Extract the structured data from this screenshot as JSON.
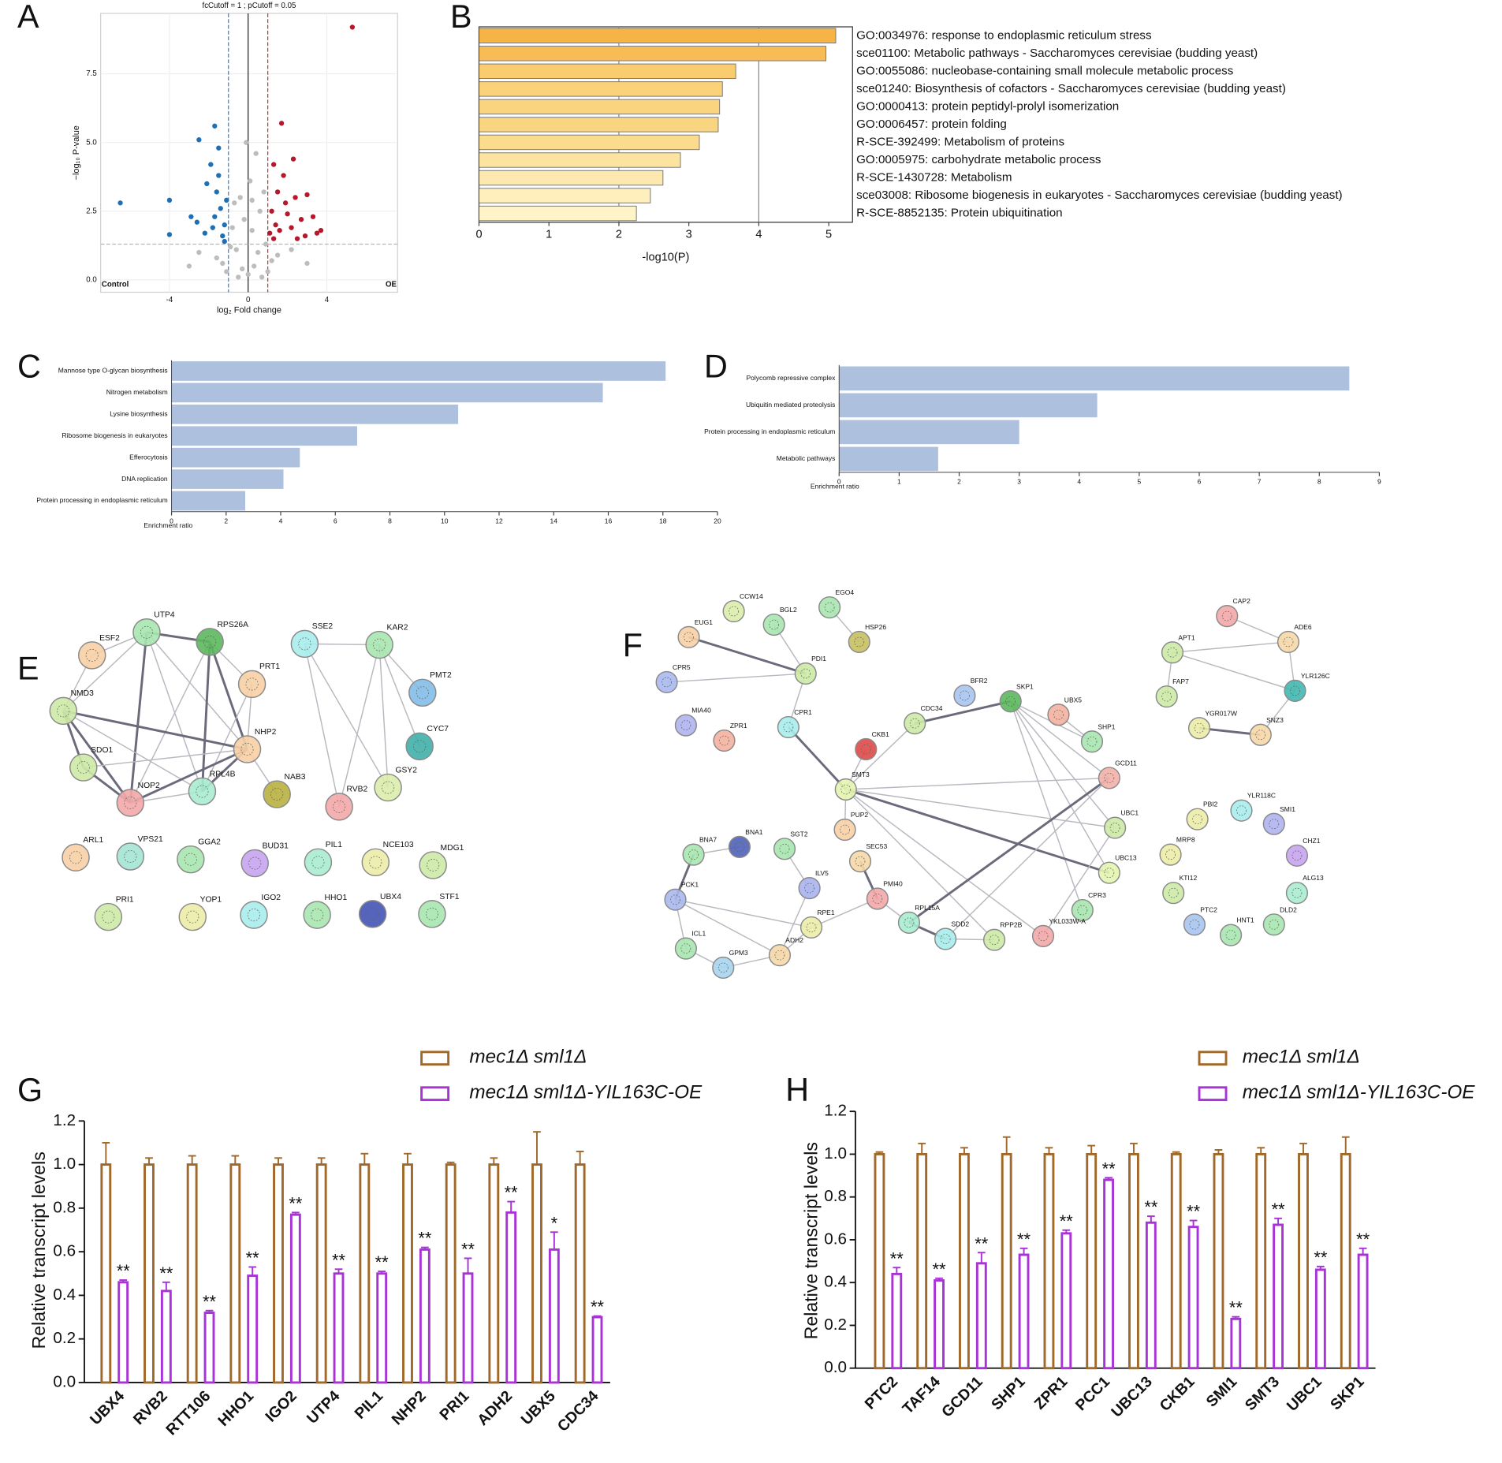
{
  "chart_data": [
    {
      "type": "scatter",
      "panel": "A",
      "title": "fcCutoff = 1 ; pCutoff = 0.05",
      "xlabel": "log₂ Fold change",
      "ylabel": "−log₁₀ P-value",
      "left_label": "Control",
      "right_label": "OE",
      "xlim": [
        -7.5,
        7.6
      ],
      "xticks": [
        -4,
        0,
        4
      ],
      "ylim": [
        -0.45,
        9.7
      ],
      "yticks": [
        {
          "value": 0,
          "label": "0.0"
        },
        2.5,
        {
          "value": 5,
          "label": "5.0"
        },
        7.5
      ],
      "grid": true,
      "cutoff_lines": {
        "x": [
          -1,
          1
        ],
        "y": 1.3
      },
      "cutoff_colors": [
        "#3a7dc6",
        "#c0392b",
        "#b0b0b0"
      ],
      "series": [
        {
          "color": "#bdbdbd",
          "x": [
            0,
            0.3,
            -0.3,
            0.5,
            -0.6,
            0.2,
            -0.2,
            0.6,
            -0.7,
            0.8,
            0.1,
            -0.4,
            0.9,
            -0.9,
            1.5,
            -1.6,
            2.2,
            -2.5,
            0.4,
            -0.1,
            3.0,
            -3.0,
            1.0,
            -1.1,
            0.7,
            -0.5,
            0.2,
            -0.8,
            1.2,
            -1.3
          ],
          "values": [
            0.2,
            0.5,
            0.4,
            1.0,
            1.1,
            1.8,
            2.2,
            2.5,
            2.8,
            3.2,
            3.6,
            3.0,
            1.3,
            1.2,
            0.9,
            0.8,
            1.1,
            1.0,
            4.6,
            5.0,
            0.6,
            0.5,
            0.3,
            0.3,
            0.1,
            0.1,
            2.9,
            1.9,
            0.7,
            0.6
          ]
        },
        {
          "color": "#1f6fb5",
          "x": [
            -6.5,
            -4,
            -4,
            -2.5,
            -1.7,
            -1.5,
            -1.9,
            -2.1,
            -1.6,
            -2.6,
            -2.9,
            -1.4,
            -1.2,
            -1.8,
            -1.3,
            -2.2,
            -1.1,
            -1.5,
            -1.2,
            -1.7
          ],
          "values": [
            2.8,
            2.9,
            1.65,
            5.1,
            5.6,
            4.8,
            4.2,
            3.5,
            3.2,
            2.1,
            2.3,
            2.6,
            2.0,
            1.9,
            1.6,
            1.7,
            2.9,
            3.8,
            1.4,
            2.3
          ]
        },
        {
          "color": "#b5172b",
          "x": [
            5.3,
            1.7,
            2.3,
            1.3,
            1.8,
            2.4,
            3.0,
            1.5,
            1.2,
            2.0,
            2.7,
            3.3,
            3.5,
            2.9,
            1.6,
            1.3,
            2.2,
            3.7,
            1.9,
            1.1,
            2.5,
            1.4
          ],
          "values": [
            9.2,
            5.7,
            4.4,
            4.2,
            3.8,
            3.0,
            3.1,
            3.2,
            2.5,
            2.4,
            2.2,
            2.3,
            1.7,
            1.6,
            1.8,
            1.5,
            1.9,
            1.8,
            2.8,
            1.7,
            1.5,
            2.0
          ]
        }
      ]
    },
    {
      "type": "bar",
      "orientation": "horizontal",
      "panel": "B",
      "xlabel": "-log10(P)",
      "categories": [
        "GO:0034976: response to endoplasmic reticulum stress",
        "sce01100: Metabolic pathways - Saccharomyces cerevisiae (budding yeast)",
        "GO:0055086: nucleobase-containing small molecule metabolic process",
        "sce01240: Biosynthesis of cofactors - Saccharomyces cerevisiae (budding yeast)",
        "GO:0000413: protein peptidyl-prolyl isomerization",
        "GO:0006457: protein folding",
        "R-SCE-392499: Metabolism of proteins",
        "GO:0005975: carbohydrate metabolic process",
        "R-SCE-1430728: Metabolism",
        "sce03008: Ribosome biogenesis in eukaryotes - Saccharomyces cerevisiae (budding yeast)",
        "R-SCE-8852135: Protein ubiquitination"
      ],
      "values": [
        5.1,
        4.96,
        3.67,
        3.48,
        3.44,
        3.42,
        3.15,
        2.88,
        2.63,
        2.45,
        2.25
      ],
      "colors": [
        "#f6b447",
        "#f7bc55",
        "#f9cc70",
        "#fad27a",
        "#fad47e",
        "#fad581",
        "#fbdc8f",
        "#fce3a0",
        "#fde9b0",
        "#feefbd",
        "#fff3c8"
      ],
      "xlim": [
        0,
        5.34
      ],
      "xticks": [
        0,
        1,
        2,
        3,
        4,
        5
      ],
      "xgrid": [
        2,
        4
      ]
    },
    {
      "type": "bar",
      "orientation": "horizontal",
      "panel": "C",
      "xlabel": "Enrichment ratio",
      "categories": [
        "Mannose type O-glycan biosynthesis",
        "Nitrogen metabolism",
        "Lysine biosynthesis",
        "Ribosome biogenesis in eukaryotes",
        "Efferocytosis",
        "DNA replication",
        "Protein processing in endoplasmic reticulum"
      ],
      "values": [
        18.1,
        15.8,
        10.5,
        6.8,
        4.7,
        4.1,
        2.7
      ],
      "color": "#adc0de",
      "xlim": [
        0,
        20
      ],
      "xticks": [
        0,
        2,
        4,
        6,
        8,
        10,
        12,
        14,
        16,
        18,
        20
      ]
    },
    {
      "type": "bar",
      "orientation": "horizontal",
      "panel": "D",
      "xlabel": "Enrichment ratio",
      "categories": [
        "Polycomb repressive complex",
        "Ubiquitin mediated proteolysis",
        "Protein processing in endoplasmic reticulum",
        "Metabolic pathways"
      ],
      "values": [
        8.5,
        4.3,
        3.0,
        1.65
      ],
      "color": "#adc0de",
      "xlim": [
        0,
        9
      ],
      "xticks": [
        0,
        1,
        2,
        3,
        4,
        5,
        6,
        7,
        8,
        9
      ]
    },
    {
      "type": "network",
      "panel": "E",
      "nodes": [
        {
          "label": "UTP4",
          "color": "#a8e6b0"
        },
        {
          "label": "RPS26A",
          "color": "#5cb85c"
        },
        {
          "label": "ESF2",
          "color": "#f7cfa6"
        },
        {
          "label": "PRT1",
          "color": "#f7cfa6"
        },
        {
          "label": "NMD3",
          "color": "#cdeaa6"
        },
        {
          "label": "NHP2",
          "color": "#f7cfa6"
        },
        {
          "label": "SDO1",
          "color": "#cdeaa6"
        },
        {
          "label": "NOP2",
          "color": "#f4a8a8"
        },
        {
          "label": "RPL4B",
          "color": "#a8ecd0"
        },
        {
          "label": "NAB3",
          "color": "#b8b040"
        },
        {
          "label": "RVB2",
          "color": "#f4a8a8"
        },
        {
          "label": "GSY2",
          "color": "#dcecaa"
        },
        {
          "label": "SSE2",
          "color": "#a8ecec"
        },
        {
          "label": "KAR2",
          "color": "#a8e6b0"
        },
        {
          "label": "PMT2",
          "color": "#84bce8"
        },
        {
          "label": "CYC7",
          "color": "#40b0a8"
        },
        {
          "label": "ARL1",
          "color": "#f7cfa6"
        },
        {
          "label": "VPS21",
          "color": "#a4e4d4"
        },
        {
          "label": "GGA2",
          "color": "#a8e6b0"
        },
        {
          "label": "BUD31",
          "color": "#c8a4f0"
        },
        {
          "label": "PIL1",
          "color": "#a8ecd0"
        },
        {
          "label": "NCE103",
          "color": "#ececa8"
        },
        {
          "label": "MDG1",
          "color": "#cdeaa6"
        },
        {
          "label": "PRI1",
          "color": "#cdeaa6"
        },
        {
          "label": "YOP1",
          "color": "#ececa8"
        },
        {
          "label": "IGO2",
          "color": "#a8ecec"
        },
        {
          "label": "HHO1",
          "color": "#a8e6b0"
        },
        {
          "label": "UBX4",
          "color": "#4454b4"
        },
        {
          "label": "STF1",
          "color": "#a8e6b0"
        }
      ]
    },
    {
      "type": "network",
      "panel": "F",
      "nodes": [
        {
          "label": "CCW14",
          "color": "#dcecaa"
        },
        {
          "label": "BGL2",
          "color": "#a8e6b0"
        },
        {
          "label": "EGO4",
          "color": "#a8e6b0"
        },
        {
          "label": "HSP26",
          "color": "#c8c060"
        },
        {
          "label": "EUG1",
          "color": "#f7cfa6"
        },
        {
          "label": "PDI1",
          "color": "#cdeaa6"
        },
        {
          "label": "CPR5",
          "color": "#a8b8f0"
        },
        {
          "label": "MIA40",
          "color": "#b0b4f0"
        },
        {
          "label": "ZPR1",
          "color": "#f4b0a0"
        },
        {
          "label": "CPR1",
          "color": "#a8ecec"
        },
        {
          "label": "BFR2",
          "color": "#a8c4f0"
        },
        {
          "label": "SKP1",
          "color": "#5cb85c"
        },
        {
          "label": "UBX5",
          "color": "#f4b0a0"
        },
        {
          "label": "SHP1",
          "color": "#a8e6b0"
        },
        {
          "label": "CDC34",
          "color": "#cdeaa6"
        },
        {
          "label": "CKB1",
          "color": "#e04848"
        },
        {
          "label": "GCD11",
          "color": "#f4b0a8"
        },
        {
          "label": "SMT3",
          "color": "#e4f4b0"
        },
        {
          "label": "UBC1",
          "color": "#cdeaa6"
        },
        {
          "label": "PUP2",
          "color": "#f7cfa6"
        },
        {
          "label": "SGT2",
          "color": "#a8e6b0"
        },
        {
          "label": "BNA7",
          "color": "#a8e6b0"
        },
        {
          "label": "BNA1",
          "color": "#5060b8"
        },
        {
          "label": "SEC53",
          "color": "#f7d8a8"
        },
        {
          "label": "UBC13",
          "color": "#e4f4b0"
        },
        {
          "label": "ILV5",
          "color": "#a8b4f0"
        },
        {
          "label": "PCK1",
          "color": "#a8b8f0"
        },
        {
          "label": "PMI40",
          "color": "#f4a8a8"
        },
        {
          "label": "CPR3",
          "color": "#a8e6b0"
        },
        {
          "label": "RPL15A",
          "color": "#a8ecd0"
        },
        {
          "label": "RPE1",
          "color": "#ececa8"
        },
        {
          "label": "SDD2",
          "color": "#a8ecec"
        },
        {
          "label": "RPP2B",
          "color": "#cdeaa6"
        },
        {
          "label": "YKL033W-A",
          "color": "#f4a8a8"
        },
        {
          "label": "ADH2",
          "color": "#f7d8a8"
        },
        {
          "label": "ICL1",
          "color": "#a8e6b0"
        },
        {
          "label": "GPM3",
          "color": "#a8d4f0"
        },
        {
          "label": "CAP2",
          "color": "#f4a8a8"
        },
        {
          "label": "ADE6",
          "color": "#f7d8a8"
        },
        {
          "label": "APT1",
          "color": "#cdeaa6"
        },
        {
          "label": "YLR126C",
          "color": "#40b8b0"
        },
        {
          "label": "FAP7",
          "color": "#cdeaa6"
        },
        {
          "label": "YGR017W",
          "color": "#ececa8"
        },
        {
          "label": "SNZ3",
          "color": "#f7d8a8"
        },
        {
          "label": "PBI2",
          "color": "#ececa8"
        },
        {
          "label": "YLR118C",
          "color": "#a8ecec"
        },
        {
          "label": "SMI1",
          "color": "#b0b4f0"
        },
        {
          "label": "MRP8",
          "color": "#ececa8"
        },
        {
          "label": "CHZ1",
          "color": "#c8a4f0"
        },
        {
          "label": "ALG13",
          "color": "#a8ecd0"
        },
        {
          "label": "KTI12",
          "color": "#cdeaa6"
        },
        {
          "label": "PTC2",
          "color": "#a8c4f0"
        },
        {
          "label": "HNT1",
          "color": "#a8e6b0"
        },
        {
          "label": "DLD2",
          "color": "#a8e6b0"
        }
      ]
    },
    {
      "type": "bar",
      "panel": "G",
      "ylabel": "Relative transcript levels",
      "categories": [
        "UBX4",
        "RVB2",
        "RTT106",
        "HHO1",
        "IGO2",
        "UTP4",
        "PIL1",
        "NHP2",
        "PRI1",
        "ADH2",
        "UBX5",
        "CDC34"
      ],
      "series": [
        {
          "name": "mec1Δ sml1Δ",
          "color": "#a0692a",
          "values": [
            1,
            1,
            1,
            1,
            1,
            1,
            1,
            1,
            1,
            1,
            1,
            1
          ],
          "errors": [
            0.1,
            0.03,
            0.04,
            0.04,
            0.03,
            0.03,
            0.05,
            0.05,
            0.01,
            0.03,
            0.15,
            0.06
          ]
        },
        {
          "name": "mec1Δ sml1Δ-YIL163C-OE",
          "color": "#a933d6",
          "values": [
            0.46,
            0.42,
            0.32,
            0.49,
            0.77,
            0.5,
            0.5,
            0.61,
            0.5,
            0.78,
            0.61,
            0.3
          ],
          "errors": [
            0.01,
            0.04,
            0.01,
            0.04,
            0.01,
            0.02,
            0.01,
            0.01,
            0.07,
            0.05,
            0.08,
            0.005
          ]
        }
      ],
      "annotations": [
        "**",
        "**",
        "**",
        "**",
        "**",
        "**",
        "**",
        "**",
        "**",
        "**",
        "*",
        "**"
      ],
      "ylim": [
        0,
        1.2
      ],
      "yticks": [
        {
          "value": 0,
          "label": "0.0"
        },
        0.2,
        0.4,
        0.6,
        0.8,
        {
          "value": 1,
          "label": "1.0"
        },
        1.2
      ]
    },
    {
      "type": "bar",
      "panel": "H",
      "ylabel": "Relative transcript levels",
      "categories": [
        "PTC2",
        "TAF14",
        "GCD11",
        "SHP1",
        "ZPR1",
        "PCC1",
        "UBC13",
        "CKB1",
        "SMI1",
        "SMT3",
        "UBC1",
        "SKP1"
      ],
      "series": [
        {
          "name": "mec1Δ sml1Δ",
          "color": "#a0692a",
          "values": [
            1,
            1,
            1,
            1,
            1,
            1,
            1,
            1,
            1,
            1,
            1,
            1
          ],
          "errors": [
            0.01,
            0.05,
            0.03,
            0.08,
            0.03,
            0.04,
            0.05,
            0.01,
            0.02,
            0.03,
            0.05,
            0.08
          ]
        },
        {
          "name": "mec1Δ sml1Δ-YIL163C-OE",
          "color": "#a933d6",
          "values": [
            0.44,
            0.41,
            0.49,
            0.53,
            0.63,
            0.88,
            0.68,
            0.66,
            0.23,
            0.67,
            0.46,
            0.53
          ],
          "errors": [
            0.03,
            0.01,
            0.05,
            0.03,
            0.015,
            0.01,
            0.03,
            0.03,
            0.01,
            0.03,
            0.015,
            0.03
          ]
        }
      ],
      "annotations": [
        "**",
        "**",
        "**",
        "**",
        "**",
        "**",
        "**",
        "**",
        "**",
        "**",
        "**",
        "**"
      ],
      "ylim": [
        0,
        1.2
      ],
      "yticks": [
        {
          "value": 0,
          "label": "0.0"
        },
        0.2,
        0.4,
        0.6,
        0.8,
        {
          "value": 1,
          "label": "1.0"
        },
        1.2
      ]
    }
  ]
}
